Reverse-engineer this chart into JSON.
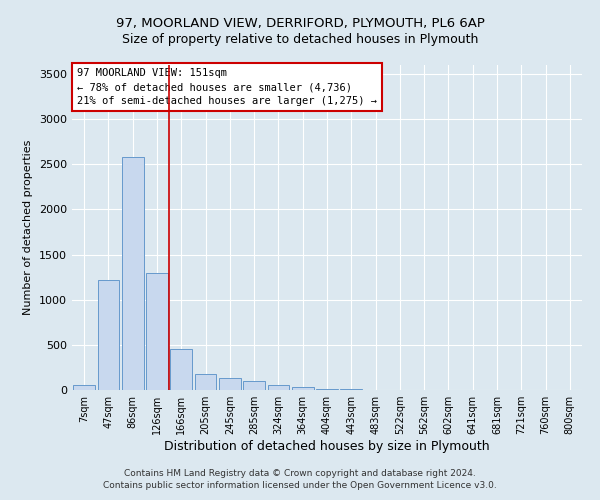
{
  "title1": "97, MOORLAND VIEW, DERRIFORD, PLYMOUTH, PL6 6AP",
  "title2": "Size of property relative to detached houses in Plymouth",
  "xlabel": "Distribution of detached houses by size in Plymouth",
  "ylabel": "Number of detached properties",
  "footer1": "Contains HM Land Registry data © Crown copyright and database right 2024.",
  "footer2": "Contains public sector information licensed under the Open Government Licence v3.0.",
  "annotation_line1": "97 MOORLAND VIEW: 151sqm",
  "annotation_line2": "← 78% of detached houses are smaller (4,736)",
  "annotation_line3": "21% of semi-detached houses are larger (1,275) →",
  "categories": [
    "7sqm",
    "47sqm",
    "86sqm",
    "126sqm",
    "166sqm",
    "205sqm",
    "245sqm",
    "285sqm",
    "324sqm",
    "364sqm",
    "404sqm",
    "443sqm",
    "483sqm",
    "522sqm",
    "562sqm",
    "602sqm",
    "641sqm",
    "681sqm",
    "721sqm",
    "760sqm",
    "800sqm"
  ],
  "values": [
    60,
    1220,
    2580,
    1300,
    450,
    180,
    130,
    100,
    50,
    30,
    15,
    10,
    5,
    0,
    0,
    0,
    0,
    0,
    0,
    0,
    0
  ],
  "bar_color": "#c8d8ee",
  "bar_edge_color": "#6699cc",
  "vline_color": "#cc0000",
  "vline_x": 3.5,
  "ylim": [
    0,
    3600
  ],
  "yticks": [
    0,
    500,
    1000,
    1500,
    2000,
    2500,
    3000,
    3500
  ],
  "bg_color": "#dce8f0",
  "plot_bg_color": "#dce8f0",
  "grid_color": "#ffffff",
  "annotation_box_facecolor": "#ffffff",
  "annotation_box_edgecolor": "#cc0000"
}
